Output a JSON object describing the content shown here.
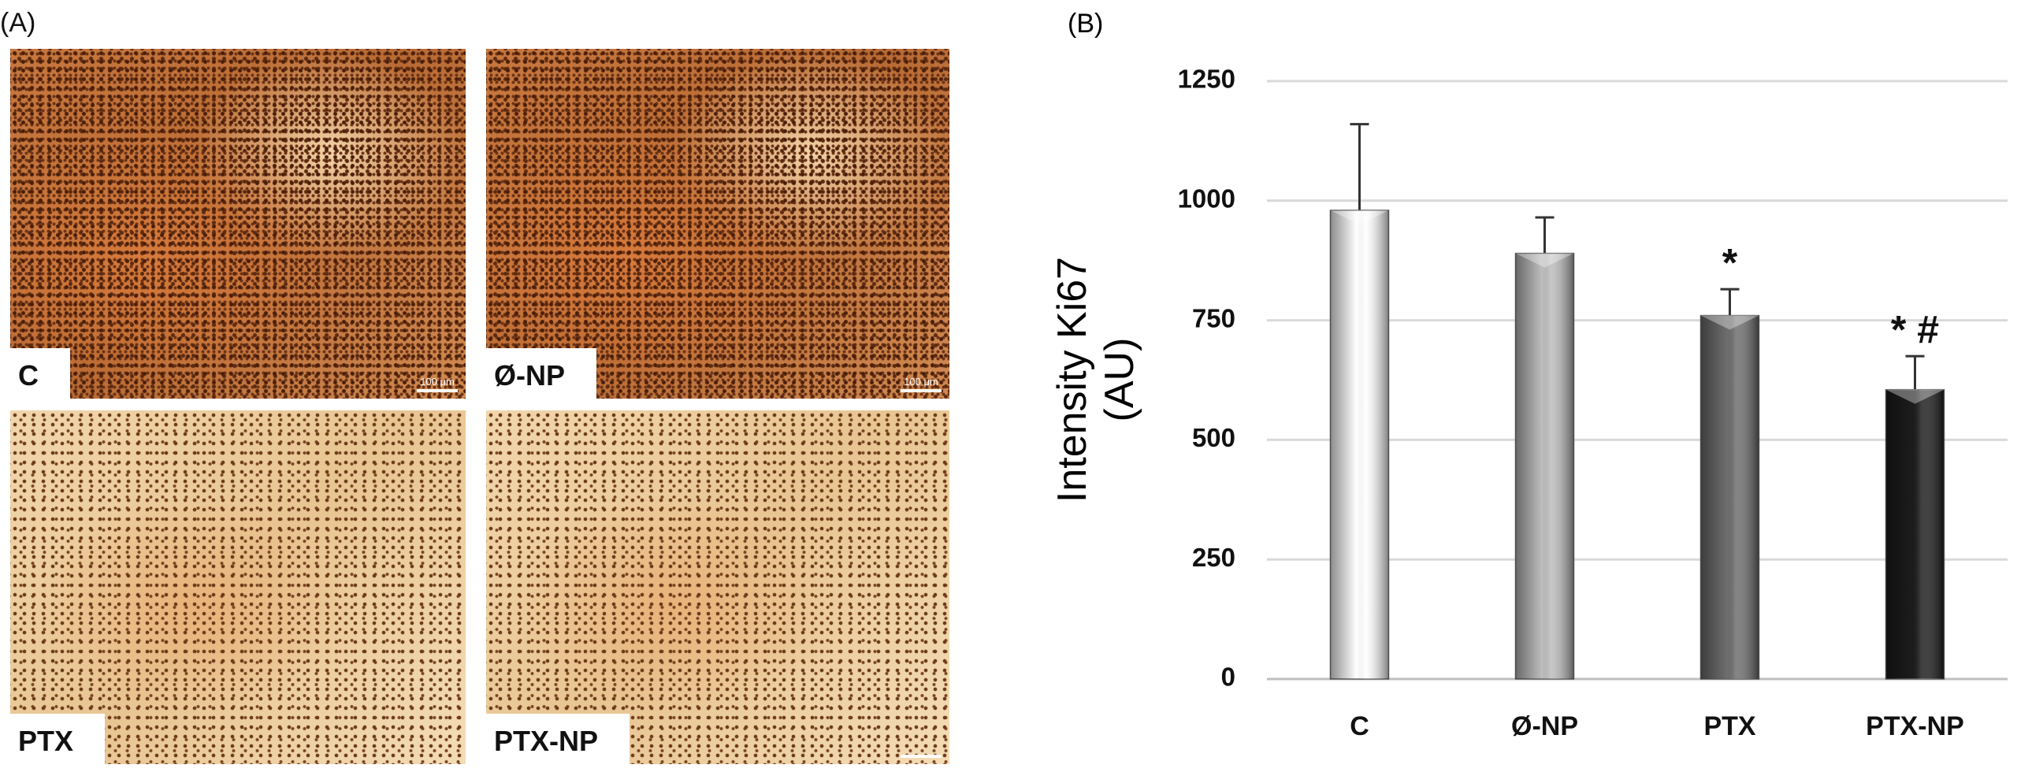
{
  "panel_a": {
    "label": "(A)",
    "images": [
      {
        "label": "C",
        "scale": "100 μm"
      },
      {
        "label": "Ø-NP",
        "scale": "100 μm"
      },
      {
        "label": "PTX"
      },
      {
        "label": "PTX-NP"
      }
    ]
  },
  "chart_data": {
    "type": "bar",
    "panel_label": "(B)",
    "ylabel": [
      "Intensity Ki67",
      "(AU)"
    ],
    "categories": [
      "C",
      "Ø-NP",
      "PTX",
      "PTX-NP"
    ],
    "values": [
      980,
      890,
      760,
      605
    ],
    "errors": [
      180,
      75,
      55,
      70
    ],
    "colors": [
      "#ffffff",
      "#bdbdbd",
      "#6e6e6e",
      "#1c1c1c"
    ],
    "annotations": [
      "*",
      "* #"
    ],
    "ylim": [
      0,
      1250
    ],
    "yticks": [
      0,
      250,
      500,
      750,
      1000,
      1250
    ],
    "grid": true
  }
}
